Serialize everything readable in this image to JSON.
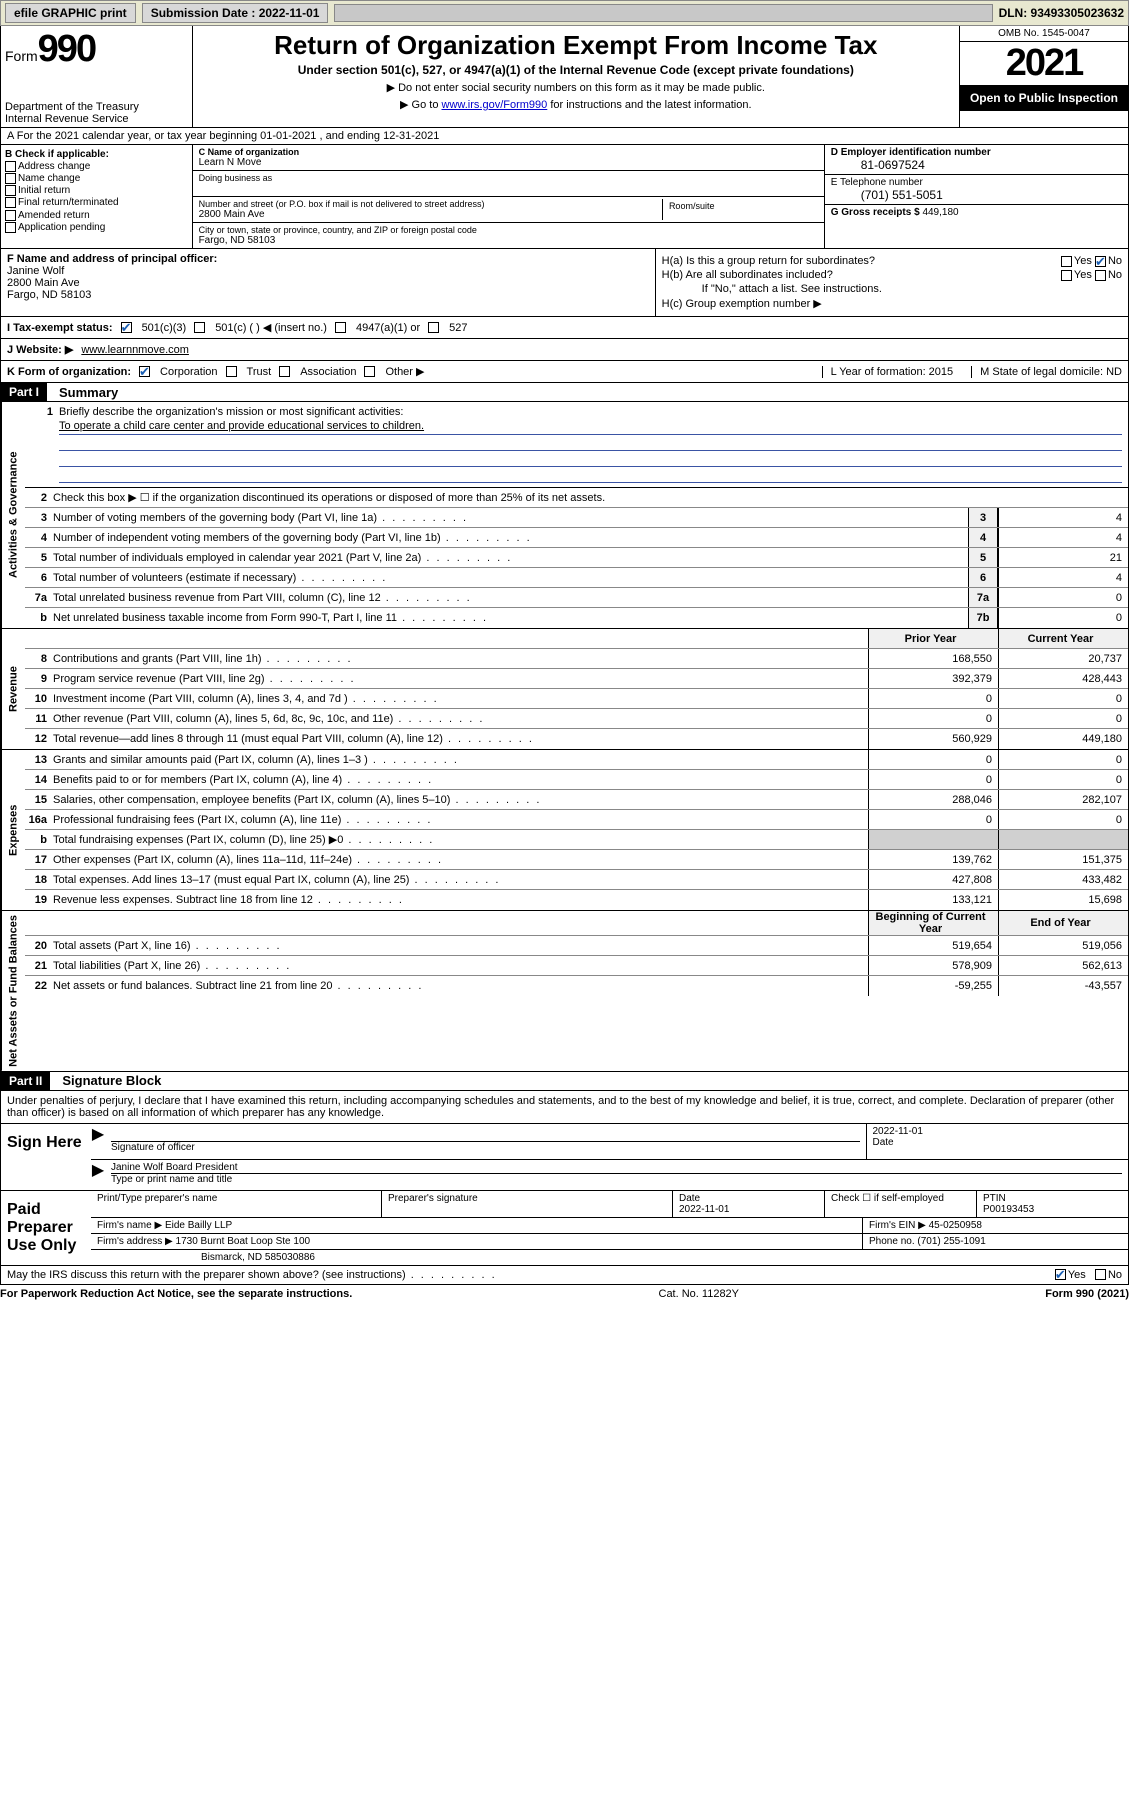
{
  "topbar": {
    "efile": "efile GRAPHIC print",
    "submission_label": "Submission Date : 2022-11-01",
    "dln": "DLN: 93493305023632"
  },
  "header": {
    "form_word": "Form",
    "form_num": "990",
    "dept": "Department of the Treasury",
    "irs": "Internal Revenue Service",
    "title": "Return of Organization Exempt From Income Tax",
    "sub": "Under section 501(c), 527, or 4947(a)(1) of the Internal Revenue Code (except private foundations)",
    "line1": "▶ Do not enter social security numbers on this form as it may be made public.",
    "line2_pre": "▶ Go to ",
    "line2_link": "www.irs.gov/Form990",
    "line2_post": " for instructions and the latest information.",
    "omb": "OMB No. 1545-0047",
    "year": "2021",
    "open": "Open to Public Inspection"
  },
  "row_a": "A For the 2021 calendar year, or tax year beginning 01-01-2021    , and ending 12-31-2021",
  "col_b": {
    "hdr": "B Check if applicable:",
    "items": [
      "Address change",
      "Name change",
      "Initial return",
      "Final return/terminated",
      "Amended return",
      "Application pending"
    ]
  },
  "col_c": {
    "name_lbl": "C Name of organization",
    "name": "Learn N Move",
    "dba_lbl": "Doing business as",
    "addr_lbl": "Number and street (or P.O. box if mail is not delivered to street address)",
    "room_lbl": "Room/suite",
    "addr": "2800 Main Ave",
    "city_lbl": "City or town, state or province, country, and ZIP or foreign postal code",
    "city": "Fargo, ND  58103"
  },
  "col_de": {
    "ein_lbl": "D Employer identification number",
    "ein": "81-0697524",
    "tel_lbl": "E Telephone number",
    "tel": "(701) 551-5051",
    "gross_lbl": "G Gross receipts $",
    "gross": "449,180"
  },
  "col_f": {
    "lbl": "F Name and address of principal officer:",
    "name": "Janine Wolf",
    "addr1": "2800 Main Ave",
    "addr2": "Fargo, ND  58103"
  },
  "col_h": {
    "ha": "H(a)  Is this a group return for subordinates?",
    "hb": "H(b)  Are all subordinates included?",
    "hb_note": "If \"No,\" attach a list. See instructions.",
    "hc": "H(c)  Group exemption number ▶"
  },
  "row_i": {
    "lbl": "I     Tax-exempt status:",
    "o1": "501(c)(3)",
    "o2": "501(c) (   ) ◀ (insert no.)",
    "o3": "4947(a)(1) or",
    "o4": "527"
  },
  "row_j": {
    "lbl": "J    Website: ▶",
    "val": "www.learnnmove.com"
  },
  "row_k": {
    "lbl": "K Form of organization:",
    "o1": "Corporation",
    "o2": "Trust",
    "o3": "Association",
    "o4": "Other ▶",
    "l": "L Year of formation: 2015",
    "m": "M State of legal domicile: ND"
  },
  "part1": {
    "hdr": "Part I",
    "title": "Summary"
  },
  "mission": {
    "n": "1",
    "t": "Briefly describe the organization's mission or most significant activities:",
    "val": "To operate a child care center and provide educational services to children."
  },
  "lines_gov": [
    {
      "n": "2",
      "t": "Check this box ▶ ☐  if the organization discontinued its operations or disposed of more than 25% of its net assets."
    },
    {
      "n": "3",
      "t": "Number of voting members of the governing body (Part VI, line 1a)",
      "box": "3",
      "v": "4"
    },
    {
      "n": "4",
      "t": "Number of independent voting members of the governing body (Part VI, line 1b)",
      "box": "4",
      "v": "4"
    },
    {
      "n": "5",
      "t": "Total number of individuals employed in calendar year 2021 (Part V, line 2a)",
      "box": "5",
      "v": "21"
    },
    {
      "n": "6",
      "t": "Total number of volunteers (estimate if necessary)",
      "box": "6",
      "v": "4"
    },
    {
      "n": "7a",
      "t": "Total unrelated business revenue from Part VIII, column (C), line 12",
      "box": "7a",
      "v": "0"
    },
    {
      "n": "b",
      "t": "Net unrelated business taxable income from Form 990-T, Part I, line 11",
      "box": "7b",
      "v": "0"
    }
  ],
  "colhdr": {
    "prior": "Prior Year",
    "current": "Current Year"
  },
  "lines_rev": [
    {
      "n": "8",
      "t": "Contributions and grants (Part VIII, line 1h)",
      "v1": "168,550",
      "v2": "20,737"
    },
    {
      "n": "9",
      "t": "Program service revenue (Part VIII, line 2g)",
      "v1": "392,379",
      "v2": "428,443"
    },
    {
      "n": "10",
      "t": "Investment income (Part VIII, column (A), lines 3, 4, and 7d )",
      "v1": "0",
      "v2": "0"
    },
    {
      "n": "11",
      "t": "Other revenue (Part VIII, column (A), lines 5, 6d, 8c, 9c, 10c, and 11e)",
      "v1": "0",
      "v2": "0"
    },
    {
      "n": "12",
      "t": "Total revenue—add lines 8 through 11 (must equal Part VIII, column (A), line 12)",
      "v1": "560,929",
      "v2": "449,180"
    }
  ],
  "lines_exp": [
    {
      "n": "13",
      "t": "Grants and similar amounts paid (Part IX, column (A), lines 1–3 )",
      "v1": "0",
      "v2": "0"
    },
    {
      "n": "14",
      "t": "Benefits paid to or for members (Part IX, column (A), line 4)",
      "v1": "0",
      "v2": "0"
    },
    {
      "n": "15",
      "t": "Salaries, other compensation, employee benefits (Part IX, column (A), lines 5–10)",
      "v1": "288,046",
      "v2": "282,107"
    },
    {
      "n": "16a",
      "t": "Professional fundraising fees (Part IX, column (A), line 11e)",
      "v1": "0",
      "v2": "0"
    },
    {
      "n": "b",
      "t": "Total fundraising expenses (Part IX, column (D), line 25) ▶0",
      "v1": "",
      "v2": "",
      "shaded": true
    },
    {
      "n": "17",
      "t": "Other expenses (Part IX, column (A), lines 11a–11d, 11f–24e)",
      "v1": "139,762",
      "v2": "151,375"
    },
    {
      "n": "18",
      "t": "Total expenses. Add lines 13–17 (must equal Part IX, column (A), line 25)",
      "v1": "427,808",
      "v2": "433,482"
    },
    {
      "n": "19",
      "t": "Revenue less expenses. Subtract line 18 from line 12",
      "v1": "133,121",
      "v2": "15,698"
    }
  ],
  "colhdr2": {
    "prior": "Beginning of Current Year",
    "current": "End of Year"
  },
  "lines_net": [
    {
      "n": "20",
      "t": "Total assets (Part X, line 16)",
      "v1": "519,654",
      "v2": "519,056"
    },
    {
      "n": "21",
      "t": "Total liabilities (Part X, line 26)",
      "v1": "578,909",
      "v2": "562,613"
    },
    {
      "n": "22",
      "t": "Net assets or fund balances. Subtract line 21 from line 20",
      "v1": "-59,255",
      "v2": "-43,557"
    }
  ],
  "part2": {
    "hdr": "Part II",
    "title": "Signature Block"
  },
  "sig_decl": "Under penalties of perjury, I declare that I have examined this return, including accompanying schedules and statements, and to the best of my knowledge and belief, it is true, correct, and complete. Declaration of preparer (other than officer) is based on all information of which preparer has any knowledge.",
  "sign_here": {
    "lbl": "Sign Here",
    "off_lbl": "Signature of officer",
    "date_lbl": "Date",
    "date": "2022-11-01",
    "name": "Janine Wolf  Board President",
    "name_lbl": "Type or print name and title"
  },
  "paid": {
    "lbl": "Paid Preparer Use Only",
    "r1": {
      "c1": "Print/Type preparer's name",
      "c2": "Preparer's signature",
      "c3": "Date",
      "c3v": "2022-11-01",
      "c4": "Check ☐ if self-employed",
      "c5": "PTIN",
      "c5v": "P00193453"
    },
    "r2": {
      "c1": "Firm's name     ▶",
      "c1v": "Eide Bailly LLP",
      "c2": "Firm's EIN ▶",
      "c2v": "45-0250958"
    },
    "r3": {
      "c1": "Firm's address ▶",
      "c1v": "1730 Burnt Boat Loop Ste 100",
      "c2": "Phone no.",
      "c2v": "(701) 255-1091"
    },
    "r4": {
      "c1v": "Bismarck, ND  585030886"
    }
  },
  "footer": {
    "q": "May the IRS discuss this return with the preparer shown above? (see instructions)",
    "paperwork": "For Paperwork Reduction Act Notice, see the separate instructions.",
    "cat": "Cat. No. 11282Y",
    "form": "Form 990 (2021)"
  },
  "vtabs": {
    "gov": "Activities & Governance",
    "rev": "Revenue",
    "exp": "Expenses",
    "net": "Net Assets or Fund Balances"
  }
}
